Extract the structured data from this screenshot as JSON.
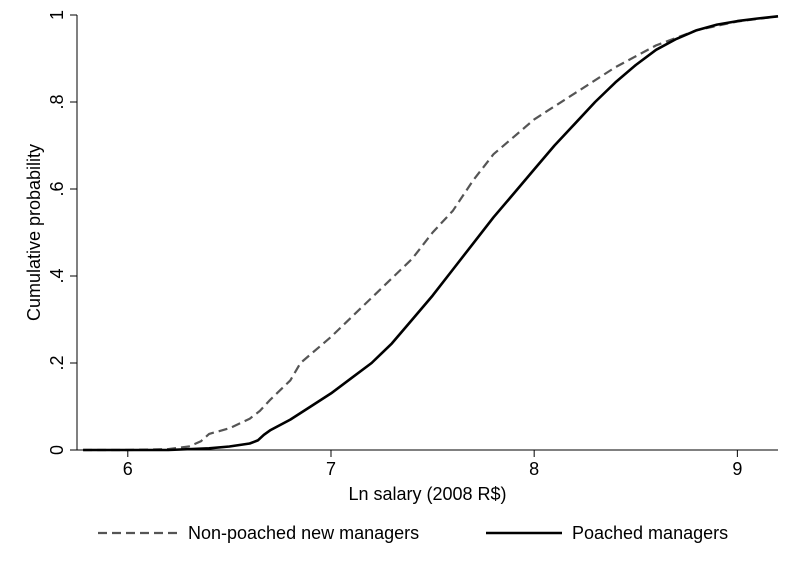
{
  "chart_data": {
    "type": "line",
    "title": "",
    "xlabel": "Ln salary (2008 R$)",
    "ylabel": "Cumulative probability",
    "xlim": [
      5.75,
      9.2
    ],
    "ylim": [
      0,
      1
    ],
    "xticks": [
      6,
      7,
      8,
      9
    ],
    "xtick_labels": [
      "6",
      "7",
      "8",
      "9"
    ],
    "yticks": [
      0,
      0.2,
      0.4,
      0.6,
      0.8,
      1
    ],
    "ytick_labels": [
      "0",
      ".2",
      ".4",
      ".6",
      ".8",
      "1"
    ],
    "grid": false,
    "legend_position": "bottom",
    "series": [
      {
        "name": "Non-poached new managers",
        "style": "dashed",
        "color": "#555555",
        "points": [
          [
            5.78,
            0.0
          ],
          [
            6.0,
            0.0
          ],
          [
            6.2,
            0.002
          ],
          [
            6.3,
            0.008
          ],
          [
            6.36,
            0.02
          ],
          [
            6.4,
            0.037
          ],
          [
            6.5,
            0.05
          ],
          [
            6.6,
            0.072
          ],
          [
            6.65,
            0.09
          ],
          [
            6.7,
            0.115
          ],
          [
            6.8,
            0.16
          ],
          [
            6.85,
            0.2
          ],
          [
            7.0,
            0.26
          ],
          [
            7.2,
            0.35
          ],
          [
            7.4,
            0.44
          ],
          [
            7.5,
            0.5
          ],
          [
            7.6,
            0.55
          ],
          [
            7.7,
            0.62
          ],
          [
            7.8,
            0.68
          ],
          [
            7.9,
            0.72
          ],
          [
            8.0,
            0.76
          ],
          [
            8.2,
            0.82
          ],
          [
            8.4,
            0.88
          ],
          [
            8.6,
            0.93
          ],
          [
            8.8,
            0.965
          ],
          [
            9.0,
            0.985
          ],
          [
            9.2,
            0.997
          ]
        ]
      },
      {
        "name": "Poached managers",
        "style": "solid",
        "color": "#000000",
        "points": [
          [
            5.78,
            0.0
          ],
          [
            6.0,
            0.0
          ],
          [
            6.2,
            0.0
          ],
          [
            6.4,
            0.004
          ],
          [
            6.5,
            0.008
          ],
          [
            6.6,
            0.015
          ],
          [
            6.64,
            0.022
          ],
          [
            6.67,
            0.035
          ],
          [
            6.7,
            0.045
          ],
          [
            6.8,
            0.07
          ],
          [
            6.9,
            0.1
          ],
          [
            7.0,
            0.13
          ],
          [
            7.1,
            0.165
          ],
          [
            7.2,
            0.2
          ],
          [
            7.3,
            0.245
          ],
          [
            7.4,
            0.3
          ],
          [
            7.5,
            0.355
          ],
          [
            7.6,
            0.415
          ],
          [
            7.7,
            0.475
          ],
          [
            7.8,
            0.535
          ],
          [
            7.9,
            0.59
          ],
          [
            8.0,
            0.645
          ],
          [
            8.1,
            0.7
          ],
          [
            8.2,
            0.75
          ],
          [
            8.3,
            0.8
          ],
          [
            8.4,
            0.845
          ],
          [
            8.5,
            0.885
          ],
          [
            8.6,
            0.92
          ],
          [
            8.7,
            0.945
          ],
          [
            8.8,
            0.965
          ],
          [
            8.9,
            0.978
          ],
          [
            9.0,
            0.986
          ],
          [
            9.1,
            0.992
          ],
          [
            9.2,
            0.997
          ]
        ]
      }
    ]
  }
}
